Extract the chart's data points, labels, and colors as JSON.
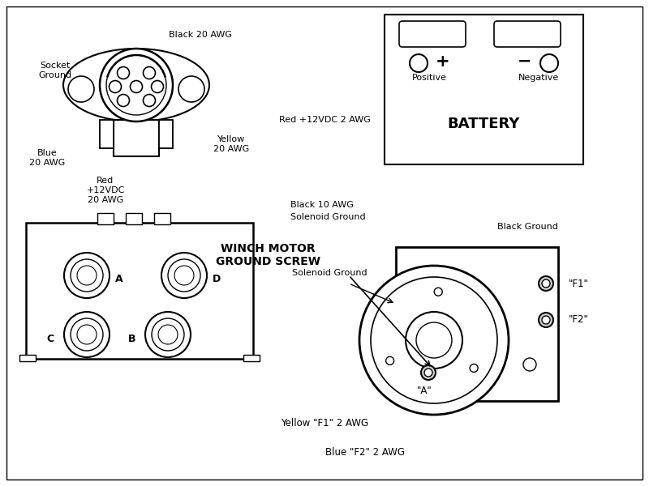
{
  "bg": "#ffffff",
  "lc": "#1a1a1a",
  "labels": {
    "black_20awg": "Black 20 AWG",
    "socket_ground": "Socket\nGround",
    "blue_20awg": "Blue\n20 AWG",
    "yellow_20awg": "Yellow\n20 AWG",
    "red_20awg": "Red\n+12VDC\n20 AWG",
    "black_10awg": "Black 10 AWG",
    "solenoid_ground": "Solenoid Ground",
    "red_2awg": "Red +12VDC 2 AWG",
    "black_ground": "Black Ground",
    "winch_motor": "WINCH MOTOR\nGROUND SCREW",
    "battery": "BATTERY",
    "positive": "Positive",
    "negative": "Negative",
    "yellow_f1": "Yellow \"F1\" 2 AWG",
    "blue_f2": "Blue \"F2\" 2 AWG",
    "A": "A",
    "B": "B",
    "C": "C",
    "D": "D",
    "F1": "\"F1\"",
    "F2": "\"F2\"",
    "mA": "\"A\""
  }
}
